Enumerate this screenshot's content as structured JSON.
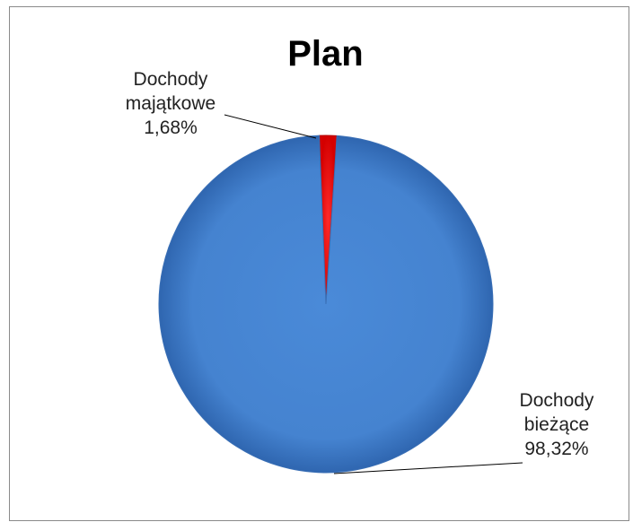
{
  "chart_data": {
    "type": "pie",
    "title": "Plan",
    "slices": [
      {
        "name": "Dochody majątkowe",
        "label_lines": [
          "Dochody",
          "majątkowe",
          "1,68%"
        ],
        "value": 1.68,
        "color": "#ff0000"
      },
      {
        "name": "Dochody bieżące",
        "label_lines": [
          "Dochody",
          "bieżące",
          "98,32%"
        ],
        "value": 98.32,
        "color": "#4a86d4"
      }
    ],
    "legend": "none",
    "data_labels": "outside with leader lines"
  }
}
